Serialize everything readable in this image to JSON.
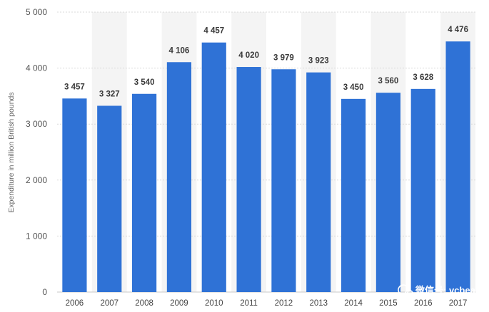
{
  "chart_data": {
    "type": "bar",
    "title": "",
    "xlabel": "",
    "ylabel": "Expenditure in million British pounds",
    "categories": [
      "2006",
      "2007",
      "2008",
      "2009",
      "2010",
      "2011",
      "2012",
      "2013",
      "2014",
      "2015",
      "2016",
      "2017"
    ],
    "values": [
      3457,
      3327,
      3540,
      4106,
      4457,
      4020,
      3979,
      3923,
      3450,
      3560,
      3628,
      4476
    ],
    "value_labels": [
      "3 457",
      "3 327",
      "3 540",
      "4 106",
      "4 457",
      "4 020",
      "3 979",
      "3 923",
      "3 450",
      "3 560",
      "3 628",
      "4 476"
    ],
    "yticks": [
      0,
      1000,
      2000,
      3000,
      4000,
      5000
    ],
    "ytick_labels": [
      "0",
      "1 000",
      "2 000",
      "3 000",
      "4 000",
      "5 000"
    ],
    "ylim": [
      0,
      5000
    ],
    "grid": true,
    "legend": "none",
    "bar_color": "#2f72d6",
    "band_color": "#f4f4f4"
  },
  "watermark": {
    "text": "微信号: vcbeat",
    "icon": "wechat-icon"
  }
}
